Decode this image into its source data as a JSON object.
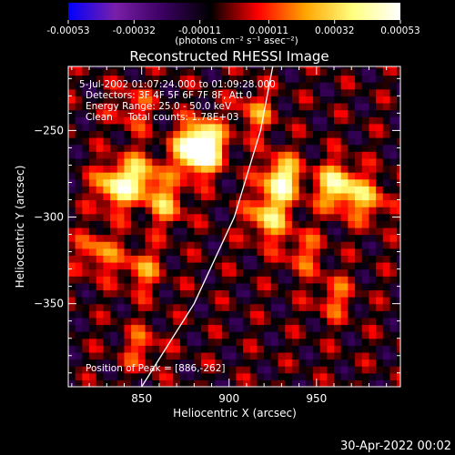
{
  "chart_data": {
    "type": "heatmap",
    "title": "Reconstructed RHESSI Image",
    "xlabel": "Heliocentric X (arcsec)",
    "ylabel": "Heliocentric Y (arcsec)",
    "xlim": [
      808,
      998
    ],
    "ylim": [
      -398,
      -213
    ],
    "x_ticks": [
      850,
      900,
      950
    ],
    "y_ticks": [
      -250,
      -300,
      -350
    ],
    "colorbar": {
      "min": -0.00053,
      "max": 0.00053,
      "tick_labels": [
        "-0.00053",
        "-0.00032",
        "-0.00011",
        "0.00011",
        "0.00032",
        "0.00053"
      ],
      "units_label": "(photons cm⁻² s⁻¹ asec⁻²)",
      "colormap_stops": [
        "#0000ff",
        "#7a1fa8",
        "#3a0060",
        "#000000",
        "#ff0000",
        "#ffa500",
        "#ffff80",
        "#ffffff"
      ]
    },
    "annotations": [
      "5-Jul-2002 01:07:24.000 to 01:09:28.000",
      "Detectors: 3F 4F 5F 6F 7F 8F, Att 0",
      "Energy Range: 25.0 - 50.0 keV",
      "Clean     Total counts: 1.78E+03",
      "Position of Peak = [886,-262]"
    ],
    "peak": {
      "x": 886,
      "y": -262
    },
    "hot_spots_note": "bright sources",
    "hot_spots": [
      {
        "x": 835,
        "y": -282,
        "value": 0.00046
      },
      {
        "x": 850,
        "y": -276,
        "value": 0.00035
      },
      {
        "x": 880,
        "y": -262,
        "value": 0.00048
      },
      {
        "x": 886,
        "y": -258,
        "value": 0.00053
      },
      {
        "x": 864,
        "y": -292,
        "value": 0.0003
      },
      {
        "x": 930,
        "y": -278,
        "value": 0.00052
      },
      {
        "x": 922,
        "y": -300,
        "value": 0.0004
      },
      {
        "x": 962,
        "y": -282,
        "value": 0.0005
      },
      {
        "x": 980,
        "y": -290,
        "value": 0.0003
      },
      {
        "x": 825,
        "y": -320,
        "value": 0.00028
      },
      {
        "x": 850,
        "y": -330,
        "value": 0.00026
      },
      {
        "x": 942,
        "y": -320,
        "value": 0.00022
      },
      {
        "x": 960,
        "y": -346,
        "value": 0.00022
      },
      {
        "x": 850,
        "y": -375,
        "value": 0.0002
      },
      {
        "x": 915,
        "y": -240,
        "value": 0.00025
      },
      {
        "x": 845,
        "y": -237,
        "value": 0.0002
      }
    ],
    "limb_curve": [
      {
        "x": 850,
        "y": -398
      },
      {
        "x": 880,
        "y": -350
      },
      {
        "x": 903,
        "y": -300
      },
      {
        "x": 918,
        "y": -250
      },
      {
        "x": 925,
        "y": -213
      }
    ],
    "grid": false
  },
  "footer_timestamp": "30-Apr-2022 00:02"
}
